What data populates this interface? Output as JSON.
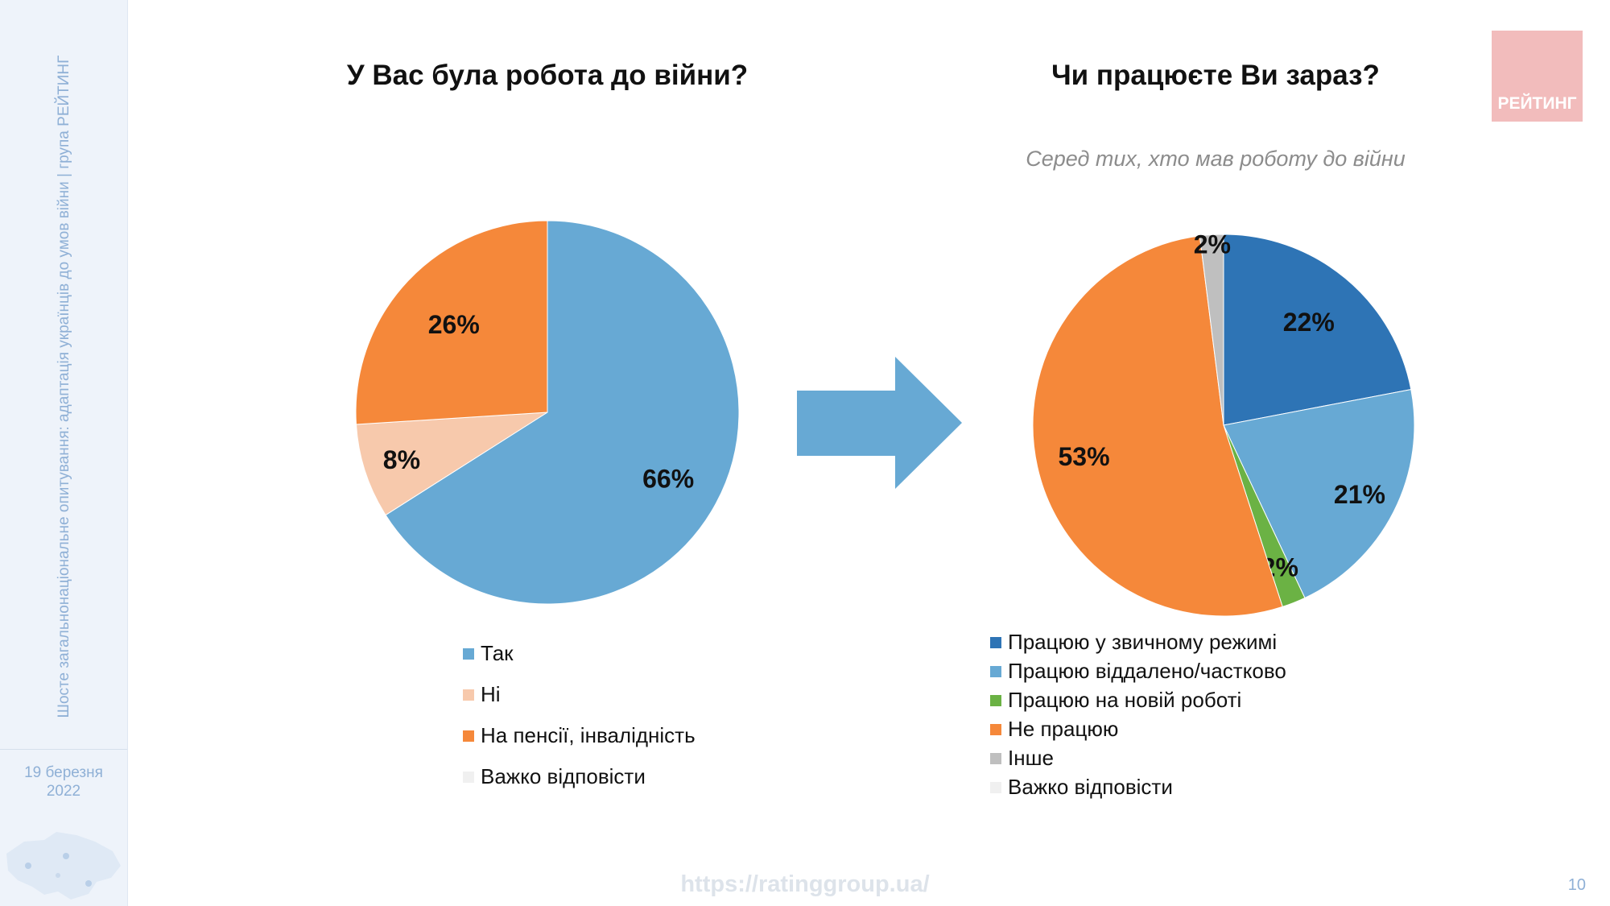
{
  "sidebar": {
    "vertical_title": "Шосте загальнонаціональне опитування: адаптація українців до умов війни | група РЕЙТИНГ",
    "date_line1": "19 березня",
    "date_line2": "2022"
  },
  "logo": {
    "text": "РЕЙТИНГ"
  },
  "footer": {
    "url": "https://ratinggroup.ua/",
    "page_number": "10"
  },
  "colors": {
    "blue_dark": "#2e74b5",
    "blue_light": "#67a9d4",
    "orange": "#f5883a",
    "peach": "#f7c9ac",
    "green": "#6bb244",
    "gray": "#bfbfbf",
    "very_light_gray": "#f0f0f0",
    "arrow": "#67a9d4"
  },
  "chart_data": [
    {
      "type": "pie",
      "title": "У Вас була робота до війни?",
      "categories": [
        "Так",
        "Ні",
        "На пенсії, інвалідність",
        "Важко відповісти"
      ],
      "values": [
        66,
        8,
        26,
        0
      ],
      "labels": [
        "66%",
        "8%",
        "26%",
        ""
      ],
      "colors": [
        "#67a9d4",
        "#f7c9ac",
        "#f5883a",
        "#f0f0f0"
      ],
      "legend_position": "bottom"
    },
    {
      "type": "pie",
      "title": "Чи працюєте Ви зараз?",
      "subtitle": "Серед тих, хто мав роботу до війни",
      "categories": [
        "Працюю у звичному режимі",
        "Працюю віддалено/частково",
        "Працюю на новій роботі",
        "Не працюю",
        "Інше",
        "Важко відповісти"
      ],
      "values": [
        22,
        21,
        2,
        53,
        2,
        0
      ],
      "labels": [
        "22%",
        "21%",
        "2%",
        "53%",
        "2%",
        ""
      ],
      "colors": [
        "#2e74b5",
        "#67a9d4",
        "#6bb244",
        "#f5883a",
        "#bfbfbf",
        "#f0f0f0"
      ],
      "legend_position": "bottom"
    }
  ]
}
